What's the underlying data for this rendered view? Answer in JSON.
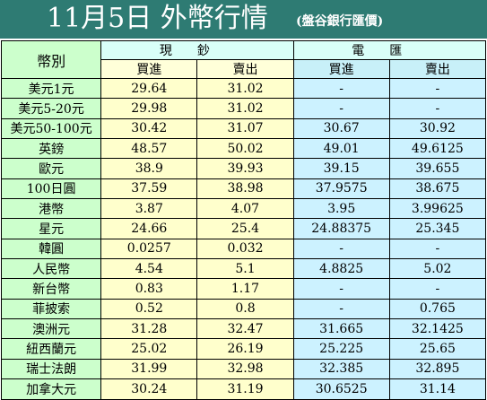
{
  "header": {
    "title": "11月5日 外幣行情",
    "subtitle": "(盤谷銀行匯價)"
  },
  "table": {
    "name_header": "幣別",
    "groups": [
      "現鈔",
      "電匯"
    ],
    "subheaders": [
      "買進",
      "賣出",
      "買進",
      "賣出"
    ],
    "rows": [
      {
        "name": "美元1元",
        "cash_buy": "29.64",
        "cash_sell": "31.02",
        "wire_buy": "-",
        "wire_sell": "-"
      },
      {
        "name": "美元5-20元",
        "cash_buy": "29.98",
        "cash_sell": "31.02",
        "wire_buy": "-",
        "wire_sell": "-"
      },
      {
        "name": "美元50-100元",
        "cash_buy": "30.42",
        "cash_sell": "31.07",
        "wire_buy": "30.67",
        "wire_sell": "30.92"
      },
      {
        "name": "英鎊",
        "cash_buy": "48.57",
        "cash_sell": "50.02",
        "wire_buy": "49.01",
        "wire_sell": "49.6125"
      },
      {
        "name": "歐元",
        "cash_buy": "38.9",
        "cash_sell": "39.93",
        "wire_buy": "39.15",
        "wire_sell": "39.655"
      },
      {
        "name": "100日圓",
        "cash_buy": "37.59",
        "cash_sell": "38.98",
        "wire_buy": "37.9575",
        "wire_sell": "38.675"
      },
      {
        "name": "港幣",
        "cash_buy": "3.87",
        "cash_sell": "4.07",
        "wire_buy": "3.95",
        "wire_sell": "3.99625"
      },
      {
        "name": "星元",
        "cash_buy": "24.66",
        "cash_sell": "25.4",
        "wire_buy": "24.88375",
        "wire_sell": "25.345"
      },
      {
        "name": "韓圓",
        "cash_buy": "0.0257",
        "cash_sell": "0.032",
        "wire_buy": "-",
        "wire_sell": "-"
      },
      {
        "name": "人民幣",
        "cash_buy": "4.54",
        "cash_sell": "5.1",
        "wire_buy": "4.8825",
        "wire_sell": "5.02"
      },
      {
        "name": "新台幣",
        "cash_buy": "0.83",
        "cash_sell": "1.17",
        "wire_buy": "-",
        "wire_sell": "-"
      },
      {
        "name": "菲披索",
        "cash_buy": "0.52",
        "cash_sell": "0.8",
        "wire_buy": "-",
        "wire_sell": "0.765"
      },
      {
        "name": "澳洲元",
        "cash_buy": "31.28",
        "cash_sell": "32.47",
        "wire_buy": "31.665",
        "wire_sell": "32.1425"
      },
      {
        "name": "紐西蘭元",
        "cash_buy": "25.02",
        "cash_sell": "26.19",
        "wire_buy": "25.225",
        "wire_sell": "25.65"
      },
      {
        "name": "瑞士法朗",
        "cash_buy": "31.99",
        "cash_sell": "32.98",
        "wire_buy": "32.385",
        "wire_sell": "32.895"
      },
      {
        "name": "加拿大元",
        "cash_buy": "30.24",
        "cash_sell": "31.19",
        "wire_buy": "30.6525",
        "wire_sell": "31.14"
      }
    ]
  }
}
